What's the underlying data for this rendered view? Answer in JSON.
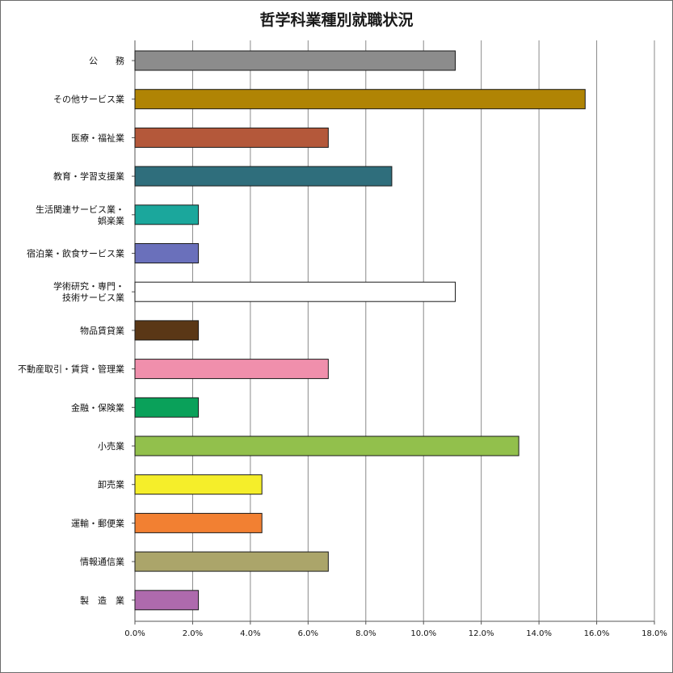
{
  "chart_data": {
    "type": "bar",
    "orientation": "horizontal",
    "title": "哲学科業種別就職状況",
    "xlabel": "",
    "ylabel": "",
    "xlim": [
      0,
      18
    ],
    "x_ticks": [
      "0.0%",
      "2.0%",
      "4.0%",
      "6.0%",
      "8.0%",
      "10.0%",
      "12.0%",
      "14.0%",
      "16.0%",
      "18.0%"
    ],
    "grid": "vertical",
    "legend": "none",
    "categories": [
      {
        "label": "公　　務",
        "value": 11.1,
        "color": "#8c8c8c"
      },
      {
        "label": "その他サービス業",
        "value": 15.6,
        "color": "#b08404"
      },
      {
        "label": "医療・福祉業",
        "value": 6.7,
        "color": "#b4583a"
      },
      {
        "label": "教育・学習支援業",
        "value": 8.9,
        "color": "#2f6e7c"
      },
      {
        "label": "生活関連サービス業・\n娯楽業",
        "value": 2.2,
        "color": "#1ba79c"
      },
      {
        "label": "宿泊業・飲食サービス業",
        "value": 2.2,
        "color": "#6a70bb"
      },
      {
        "label": "学術研究・専門・\n技術サービス業",
        "value": 11.1,
        "color": "#ffffff"
      },
      {
        "label": "物品賃貸業",
        "value": 2.2,
        "color": "#5a3716"
      },
      {
        "label": "不動産取引・賃貸・管理業",
        "value": 6.7,
        "color": "#f08fac"
      },
      {
        "label": "金融・保険業",
        "value": 2.2,
        "color": "#0aa15a"
      },
      {
        "label": "小売業",
        "value": 13.3,
        "color": "#92c04c"
      },
      {
        "label": "卸売業",
        "value": 4.4,
        "color": "#f5ee2a"
      },
      {
        "label": "運輸・郵便業",
        "value": 4.4,
        "color": "#f28032"
      },
      {
        "label": "情報通信業",
        "value": 6.7,
        "color": "#aba56a"
      },
      {
        "label": "製　造　業",
        "value": 2.2,
        "color": "#ae6aad"
      }
    ]
  }
}
